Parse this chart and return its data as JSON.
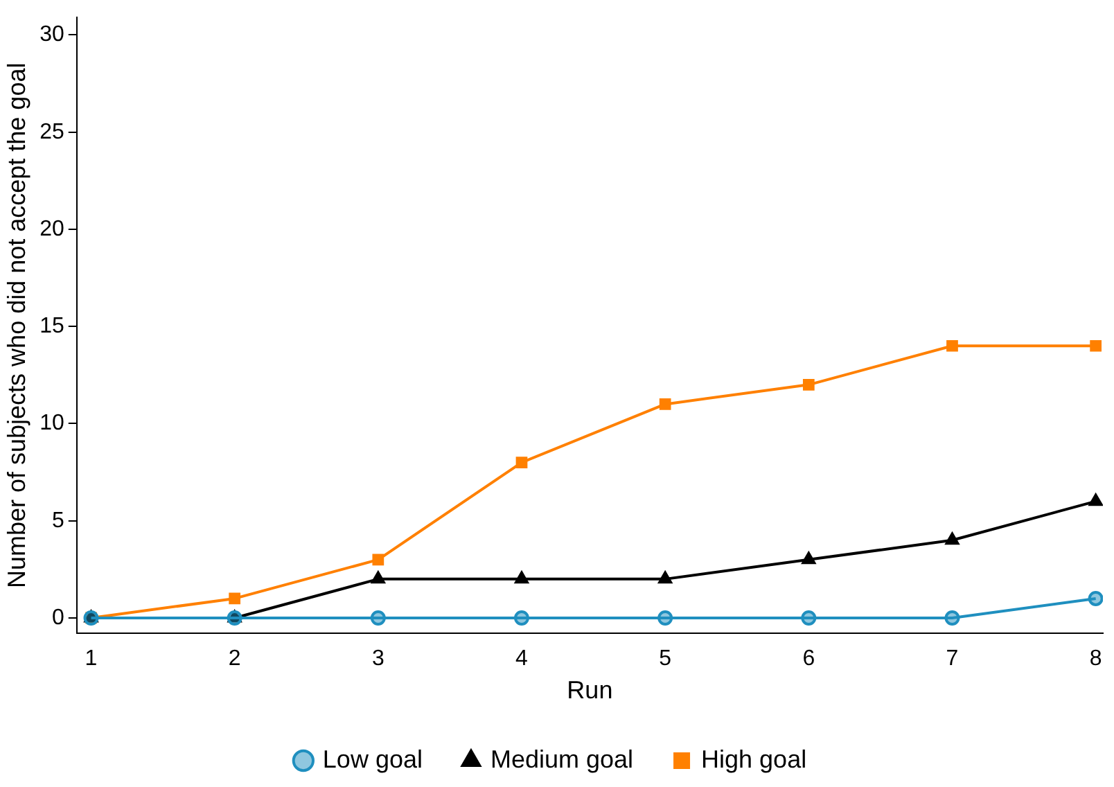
{
  "chart_data": {
    "type": "line",
    "xlabel": "Run",
    "ylabel": "Number of subjects who did not accept the goal",
    "x": [
      1,
      2,
      3,
      4,
      5,
      6,
      7,
      8
    ],
    "series": [
      {
        "name": "Low goal",
        "color": "#1f8fbf",
        "marker": "circle",
        "values": [
          0,
          0,
          0,
          0,
          0,
          0,
          0,
          1
        ]
      },
      {
        "name": "Medium goal",
        "color": "#000000",
        "marker": "triangle",
        "values": [
          0,
          0,
          2,
          2,
          2,
          3,
          4,
          6
        ]
      },
      {
        "name": "High goal",
        "color": "#ff8000",
        "marker": "square",
        "values": [
          0,
          1,
          3,
          8,
          11,
          12,
          14,
          14
        ]
      }
    ],
    "xlim": [
      0.9,
      8.05
    ],
    "xticks": [
      1,
      2,
      3,
      4,
      5,
      6,
      7,
      8
    ],
    "ylim": [
      -0.8,
      30.9
    ],
    "yticks": [
      0,
      5,
      10,
      15,
      20,
      25,
      30
    ],
    "grid": false,
    "legend": "bottom",
    "line_style": "solid"
  }
}
